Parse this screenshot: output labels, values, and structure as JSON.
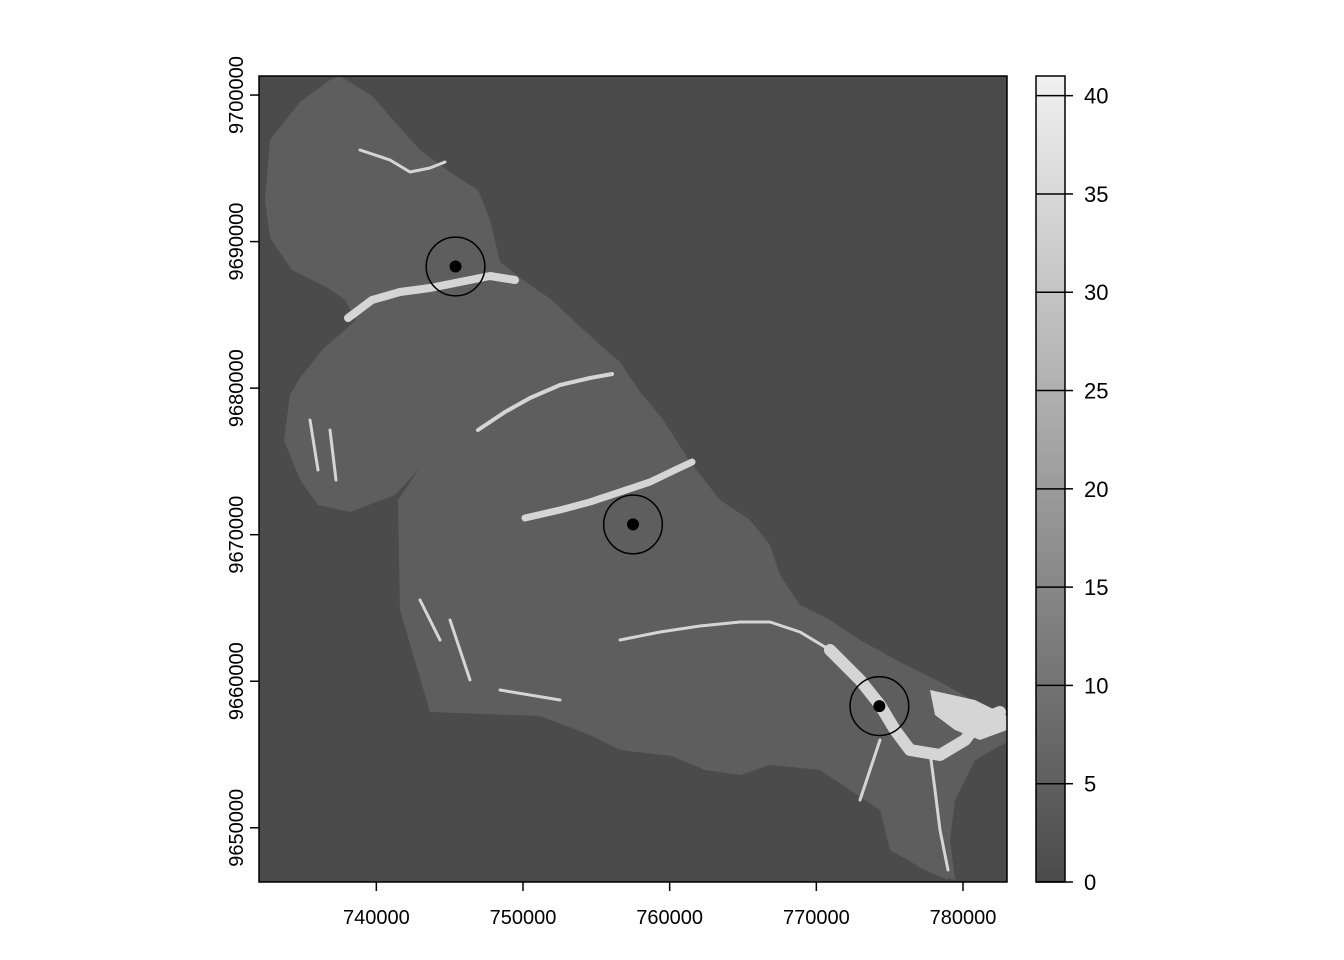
{
  "map": {
    "type": "raster",
    "colors": {
      "background": "#4b4b4b",
      "land": "#5e5e5e",
      "river": "#d5d5d5",
      "marker": "#000000"
    },
    "x_axis": {
      "range": [
        732000,
        783000
      ],
      "ticks": [
        {
          "value": 740000,
          "label": "740000"
        },
        {
          "value": 750000,
          "label": "750000"
        },
        {
          "value": 760000,
          "label": "760000"
        },
        {
          "value": 770000,
          "label": "770000"
        },
        {
          "value": 780000,
          "label": "780000"
        }
      ]
    },
    "y_axis": {
      "range": [
        9646300,
        9701300
      ],
      "ticks": [
        {
          "value": 9650000,
          "label": "9650000"
        },
        {
          "value": 9660000,
          "label": "9660000"
        },
        {
          "value": 9670000,
          "label": "9670000"
        },
        {
          "value": 9680000,
          "label": "9680000"
        },
        {
          "value": 9690000,
          "label": "9690000"
        },
        {
          "value": 9700000,
          "label": "9700000"
        }
      ]
    },
    "points": [
      {
        "x": 745400,
        "y": 9688300,
        "radius": 2000
      },
      {
        "x": 757500,
        "y": 9670700,
        "radius": 2000
      },
      {
        "x": 774300,
        "y": 9658300,
        "radius": 2000
      }
    ]
  },
  "legend": {
    "range": [
      0,
      41
    ],
    "ticks": [
      {
        "value": 0,
        "label": "0"
      },
      {
        "value": 5,
        "label": "5"
      },
      {
        "value": 10,
        "label": "10"
      },
      {
        "value": 15,
        "label": "15"
      },
      {
        "value": 20,
        "label": "20"
      },
      {
        "value": 25,
        "label": "25"
      },
      {
        "value": 30,
        "label": "30"
      },
      {
        "value": 35,
        "label": "35"
      },
      {
        "value": 40,
        "label": "40"
      }
    ]
  }
}
